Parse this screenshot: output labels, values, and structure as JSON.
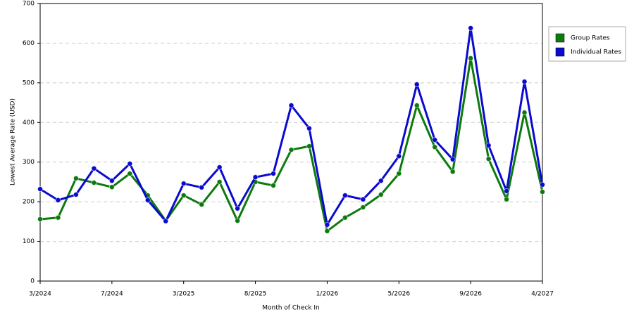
{
  "chart_data": {
    "type": "line",
    "x_label": "Month of Check In",
    "y_label": "Lowest Average Rate (USD)",
    "categories": [
      "3/2024",
      null,
      null,
      null,
      "7/2024",
      null,
      null,
      null,
      "3/2025",
      null,
      null,
      null,
      "8/2025",
      null,
      null,
      null,
      "1/2026",
      null,
      null,
      null,
      "5/2026",
      null,
      null,
      null,
      "9/2026",
      null,
      null,
      null,
      "4/2027"
    ],
    "series": [
      {
        "name": "Group Rates",
        "color": "#0d7a0d",
        "values": [
          156,
          160,
          259,
          248,
          237,
          271,
          216,
          152,
          216,
          193,
          250,
          152,
          250,
          241,
          331,
          340,
          126,
          160,
          186,
          218,
          271,
          443,
          338,
          276,
          562,
          308,
          206,
          425,
          225
        ]
      },
      {
        "name": "Individual Rates",
        "color": "#0a0ad0",
        "values": [
          232,
          204,
          218,
          284,
          253,
          296,
          204,
          151,
          246,
          236,
          287,
          183,
          262,
          271,
          443,
          385,
          142,
          216,
          206,
          253,
          315,
          496,
          356,
          307,
          638,
          342,
          227,
          503,
          243
        ]
      }
    ],
    "ylim": [
      0,
      700
    ],
    "yticks": [
      0,
      100,
      200,
      300,
      400,
      500,
      600,
      700
    ],
    "grid": true,
    "legend": "right"
  }
}
